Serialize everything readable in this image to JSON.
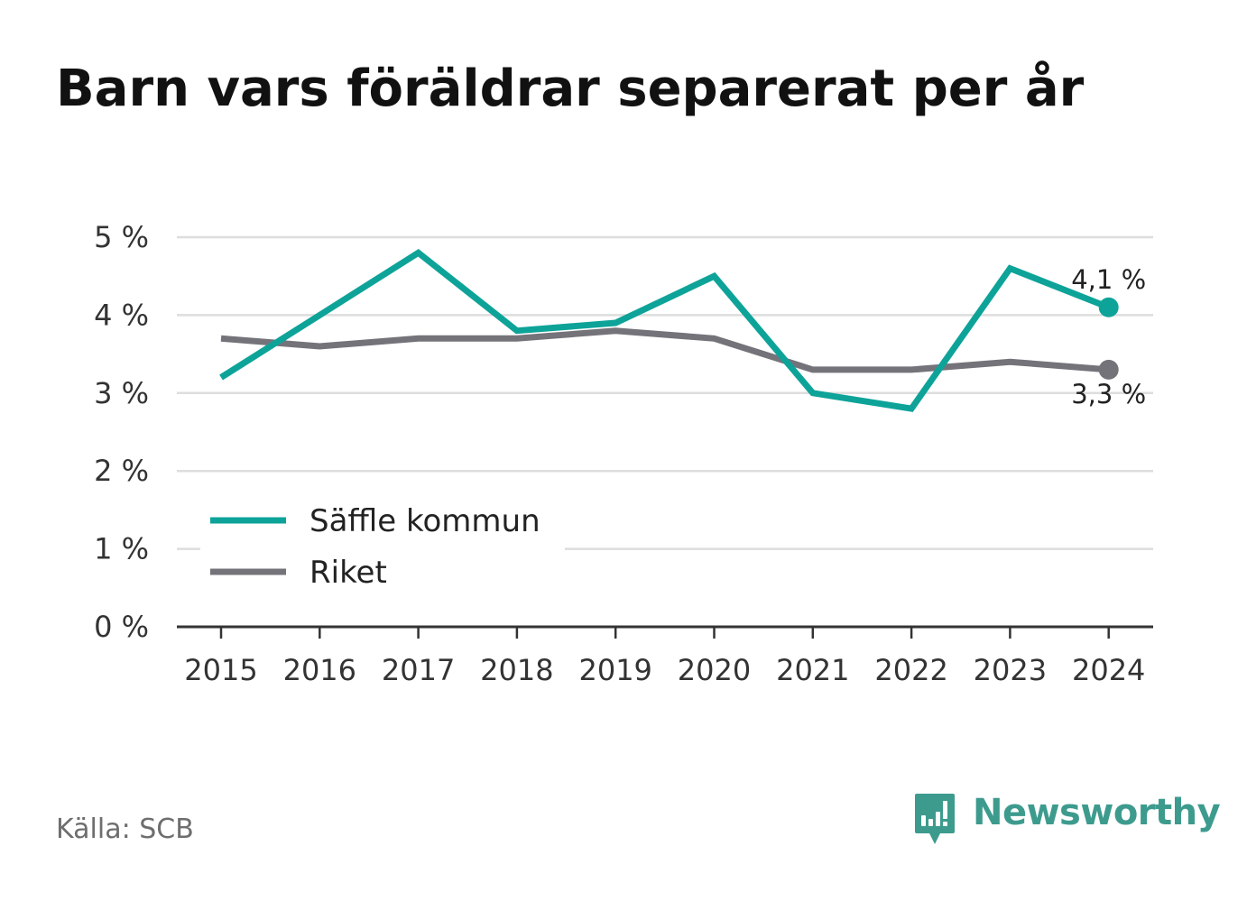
{
  "title": "Barn vars föräldrar separerat per år",
  "source": "Källa: SCB",
  "brand": {
    "name": "Newsworthy",
    "icon": "newsworthy-logo-icon",
    "color": "#3d9b8e"
  },
  "chart_data": {
    "type": "line",
    "x": [
      "2015",
      "2016",
      "2017",
      "2018",
      "2019",
      "2020",
      "2021",
      "2022",
      "2023",
      "2024"
    ],
    "yticks": [
      "0 %",
      "1 %",
      "2 %",
      "3 %",
      "4 %",
      "5 %"
    ],
    "ylim": [
      0,
      5
    ],
    "grid": true,
    "legend_position": "bottom-left",
    "series": [
      {
        "name": "Säffle kommun",
        "color": "#0ea399",
        "values": [
          3.2,
          4.0,
          4.8,
          3.8,
          3.9,
          4.5,
          3.0,
          2.8,
          4.6,
          4.1
        ],
        "end_label": "4,1 %"
      },
      {
        "name": "Riket",
        "color": "#75737a",
        "values": [
          3.7,
          3.6,
          3.7,
          3.7,
          3.8,
          3.7,
          3.3,
          3.3,
          3.4,
          3.3
        ],
        "end_label": "3,3 %"
      }
    ]
  }
}
